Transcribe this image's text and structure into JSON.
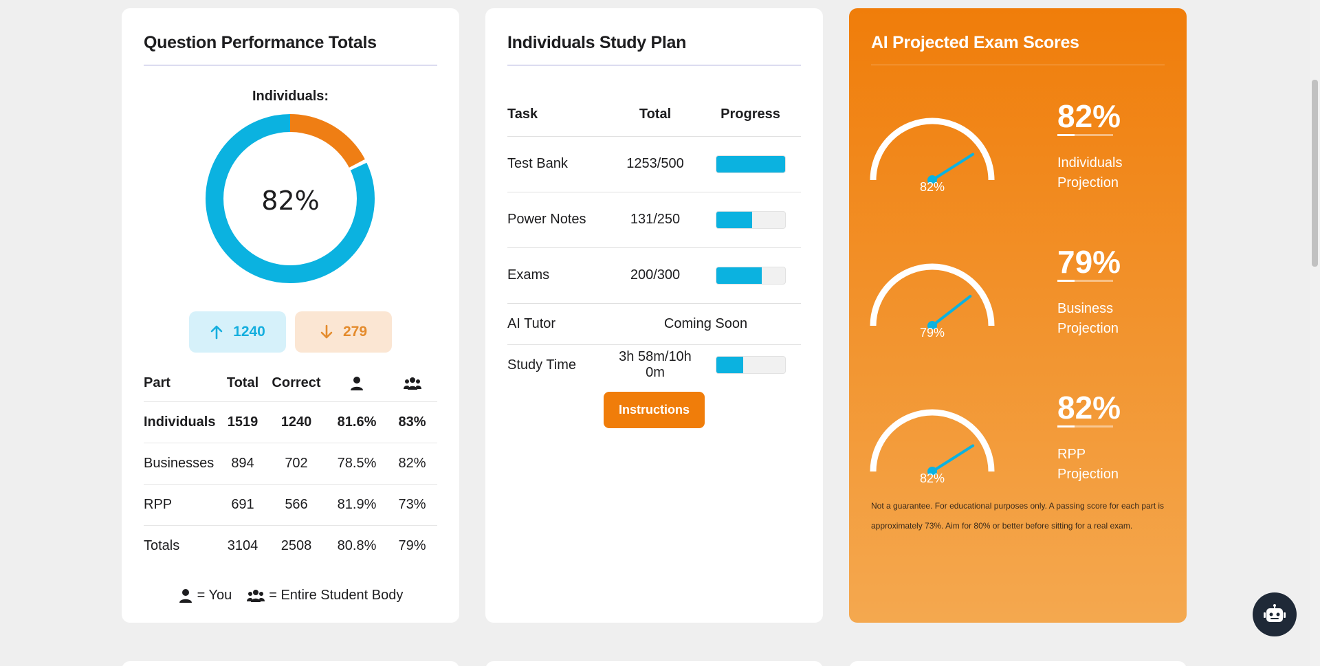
{
  "performance": {
    "title": "Question Performance Totals",
    "donut_label": "Individuals:",
    "donut_value": "82%",
    "donut_fraction": 0.82,
    "correct_count": "1240",
    "incorrect_count": "279",
    "columns": [
      "Part",
      "Total",
      "Correct"
    ],
    "you_icon": "user-icon",
    "body_icon": "users-icon",
    "rows": [
      {
        "part": "Individuals",
        "total": "1519",
        "correct": "1240",
        "you": "81.6%",
        "body": "83%"
      },
      {
        "part": "Businesses",
        "total": "894",
        "correct": "702",
        "you": "78.5%",
        "body": "82%"
      },
      {
        "part": "RPP",
        "total": "691",
        "correct": "566",
        "you": "81.9%",
        "body": "73%"
      },
      {
        "part": "Totals",
        "total": "3104",
        "correct": "2508",
        "you": "80.8%",
        "body": "79%"
      }
    ],
    "legend_you": "= You",
    "legend_body": "= Entire Student Body"
  },
  "plan": {
    "title": "Individuals Study Plan",
    "columns": [
      "Task",
      "Total",
      "Progress"
    ],
    "rows": [
      {
        "task": "Test Bank",
        "total": "1253/500",
        "progress": 1.0
      },
      {
        "task": "Power Notes",
        "total": "131/250",
        "progress": 0.524
      },
      {
        "task": "Exams",
        "total": "200/300",
        "progress": 0.667
      },
      {
        "task": "AI Tutor",
        "total": "Coming Soon"
      },
      {
        "task": "Study Time",
        "total": "3h 58m/10h 0m",
        "progress": 0.397
      }
    ],
    "button_label": "Instructions"
  },
  "ai": {
    "title": "AI Projected Exam Scores",
    "projections": [
      {
        "value": "82%",
        "fraction": 0.82,
        "label_line1": "Individuals",
        "label_line2": "Projection"
      },
      {
        "value": "79%",
        "fraction": 0.79,
        "label_line1": "Business",
        "label_line2": "Projection"
      },
      {
        "value": "82%",
        "fraction": 0.82,
        "label_line1": "RPP",
        "label_line2": "Projection"
      }
    ],
    "disclaimer": "Not a guarantee. For educational purposes only. A passing score for each part is approximately 73%. Aim for 80% or better before sitting for a real exam."
  },
  "colors": {
    "accent_blue": "#0bb2e0",
    "accent_orange": "#f07d0a",
    "chat_bg": "#1f2937"
  },
  "chat_icon": "robot-icon"
}
